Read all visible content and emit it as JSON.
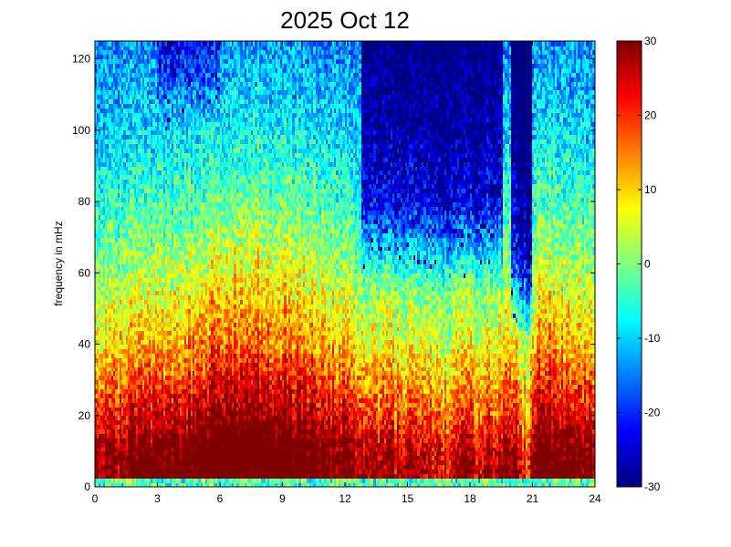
{
  "chart_data": {
    "type": "heatmap",
    "title": "2025 Oct 12",
    "xlabel": "",
    "ylabel": "frequency in mHz",
    "xlim": [
      0,
      24
    ],
    "ylim": [
      0,
      125
    ],
    "x_ticks": [
      0,
      3,
      6,
      9,
      12,
      15,
      18,
      21,
      24
    ],
    "x_tick_labels": [
      "0",
      "3",
      "6",
      "9",
      "12",
      "15",
      "18",
      "21",
      "24"
    ],
    "y_ticks": [
      0,
      20,
      40,
      60,
      80,
      100,
      120
    ],
    "y_tick_labels": [
      "0",
      "20",
      "40",
      "60",
      "80",
      "100",
      "120"
    ],
    "colorbar": {
      "clim": [
        -30,
        30
      ],
      "colormap": "jet",
      "ticks": [
        -30,
        -20,
        -10,
        0,
        10,
        20,
        30
      ],
      "tick_labels": [
        "-30",
        "-20",
        "-10",
        "0",
        "10",
        "20",
        "30"
      ]
    },
    "grid": false,
    "time_resolution_hours": 0.1,
    "frequency_resolution_mhz": 1.25,
    "value_model": {
      "description": "power (colour scale -30 to 30): high at low frequencies, decreasing with frequency; strongest broadband activity 06-11 h; deep minima at high frequencies 13-20 h and near 20.3-20.8 h; return of power after 21 h",
      "band_profile": [
        {
          "f": 0,
          "v": 0
        },
        {
          "f": 3,
          "v": 30
        },
        {
          "f": 10,
          "v": 28
        },
        {
          "f": 20,
          "v": 20
        },
        {
          "f": 40,
          "v": 8
        },
        {
          "f": 60,
          "v": 0
        },
        {
          "f": 80,
          "v": -6
        },
        {
          "f": 100,
          "v": -11
        },
        {
          "f": 125,
          "v": -15
        }
      ],
      "time_activity": [
        {
          "t": 0,
          "v": 0
        },
        {
          "t": 2,
          "v": 4
        },
        {
          "t": 4,
          "v": 6
        },
        {
          "t": 6,
          "v": 13
        },
        {
          "t": 8,
          "v": 14
        },
        {
          "t": 10,
          "v": 10
        },
        {
          "t": 12,
          "v": 4
        },
        {
          "t": 13,
          "v": 0
        },
        {
          "t": 15,
          "v": -3
        },
        {
          "t": 17,
          "v": -4
        },
        {
          "t": 19,
          "v": -2
        },
        {
          "t": 20.2,
          "v": 2
        },
        {
          "t": 20.5,
          "v": -8
        },
        {
          "t": 20.9,
          "v": -6
        },
        {
          "t": 21.2,
          "v": 10
        },
        {
          "t": 22.5,
          "v": 6
        },
        {
          "t": 24,
          "v": 4
        }
      ],
      "high_freq_quiet_windows": [
        {
          "t_start": 12.8,
          "t_end": 19.6,
          "f_above": 55,
          "depth": 16
        },
        {
          "t_start": 20.0,
          "t_end": 21.0,
          "f_above": 40,
          "depth": 20
        },
        {
          "t_start": 3.0,
          "t_end": 6.0,
          "f_above": 100,
          "depth": 8
        }
      ],
      "noise_amplitude": 7,
      "seed": 20251012
    }
  }
}
